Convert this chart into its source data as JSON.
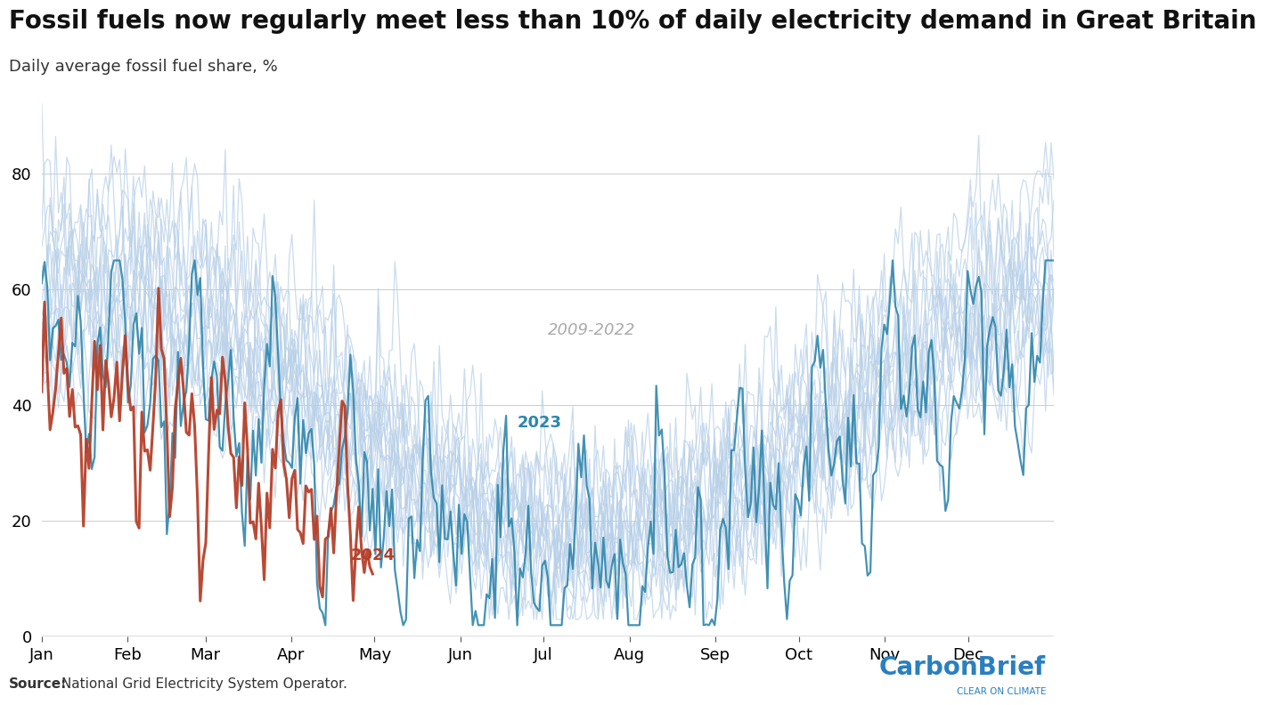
{
  "title": "Fossil fuels now regularly meet less than 10% of daily electricity demand in Great Britain",
  "subtitle": "Daily average fossil fuel share, %",
  "source_bold": "Source:",
  "source_rest": " National Grid Electricity System Operator.",
  "ylim": [
    0,
    95
  ],
  "yticks": [
    0,
    20,
    40,
    60,
    80
  ],
  "months": [
    "Jan",
    "Feb",
    "Mar",
    "Apr",
    "May",
    "Jun",
    "Jul",
    "Aug",
    "Sep",
    "Oct",
    "Nov",
    "Dec"
  ],
  "color_historical": "#b8d0e8",
  "color_2023": "#2e86ab",
  "color_2024": "#b5402a",
  "color_label_hist": "#aaaaaa",
  "label_2009_2022": "2009-2022",
  "label_2023": "2023",
  "label_2024": "2024",
  "background_color": "#ffffff",
  "title_fontsize": 20,
  "subtitle_fontsize": 13,
  "tick_fontsize": 13,
  "source_fontsize": 11,
  "carbonbrief_fontsize": 20,
  "carbonbrief_sub_fontsize": 7.5
}
